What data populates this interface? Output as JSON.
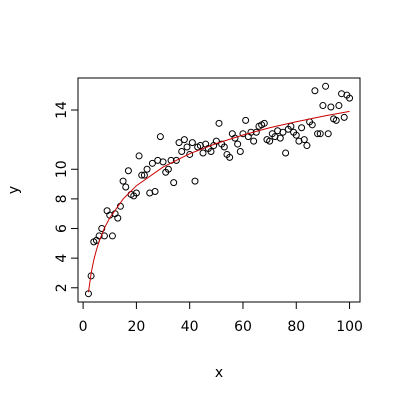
{
  "chart_data": {
    "type": "scatter",
    "xlabel": "x",
    "ylabel": "y",
    "xlim": [
      -1.92,
      103.92
    ],
    "ylim": [
      1.04,
      16.16
    ],
    "xticks": [
      0,
      20,
      40,
      60,
      80,
      100
    ],
    "yticks": [
      2,
      4,
      6,
      8,
      10,
      14
    ],
    "series": [
      {
        "type": "scatter",
        "color": "#000000",
        "x": [
          2,
          3,
          4,
          5,
          6,
          7,
          8,
          9,
          10,
          11,
          12,
          13,
          14,
          15,
          16,
          17,
          18,
          19,
          20,
          21,
          22,
          23,
          24,
          25,
          26,
          27,
          28,
          29,
          30,
          31,
          32,
          33,
          34,
          35,
          36,
          37,
          38,
          39,
          40,
          41,
          42,
          43,
          44,
          45,
          46,
          47,
          48,
          49,
          50,
          51,
          52,
          53,
          54,
          55,
          56,
          57,
          58,
          59,
          60,
          61,
          62,
          63,
          64,
          65,
          66,
          67,
          68,
          69,
          70,
          71,
          72,
          73,
          74,
          75,
          76,
          77,
          78,
          79,
          80,
          81,
          82,
          83,
          84,
          85,
          86,
          87,
          88,
          89,
          90,
          91,
          92,
          93,
          94,
          95,
          96,
          97,
          98,
          99,
          100
        ],
        "values": [
          1.6,
          2.8,
          5.1,
          5.2,
          5.5,
          6.0,
          5.5,
          7.2,
          6.9,
          5.5,
          7.0,
          6.7,
          7.5,
          9.2,
          8.8,
          9.9,
          8.3,
          8.2,
          8.4,
          10.9,
          9.6,
          9.6,
          10.0,
          8.4,
          10.4,
          8.5,
          10.6,
          12.2,
          10.5,
          9.8,
          10.0,
          10.6,
          9.1,
          10.6,
          11.8,
          11.2,
          12.0,
          11.5,
          11.0,
          11.8,
          9.2,
          11.5,
          11.6,
          11.1,
          11.7,
          11.4,
          11.2,
          11.6,
          11.9,
          13.1,
          11.7,
          11.5,
          11.0,
          10.8,
          12.4,
          12.1,
          11.7,
          11.2,
          12.4,
          13.3,
          12.2,
          12.5,
          11.9,
          12.5,
          12.9,
          13.0,
          13.1,
          12.0,
          11.9,
          12.4,
          12.2,
          12.6,
          12.1,
          12.5,
          11.1,
          12.7,
          12.9,
          12.5,
          12.3,
          11.9,
          12.8,
          12.0,
          11.6,
          13.2,
          13.0,
          15.3,
          12.4,
          12.4,
          14.3,
          15.6,
          12.4,
          14.2,
          13.4,
          13.3,
          14.3,
          15.1,
          13.5,
          15.0,
          14.8
        ]
      },
      {
        "type": "line",
        "color": "#cc0000",
        "x": [
          2,
          3,
          4,
          5,
          6,
          8,
          10,
          15,
          20,
          30,
          40,
          50,
          60,
          70,
          80,
          90,
          100
        ],
        "values": [
          1.7,
          2.97,
          3.87,
          4.56,
          5.13,
          6.03,
          6.72,
          7.99,
          8.89,
          10.15,
          11.05,
          11.74,
          12.31,
          12.8,
          13.21,
          13.58,
          13.91
        ]
      }
    ]
  }
}
